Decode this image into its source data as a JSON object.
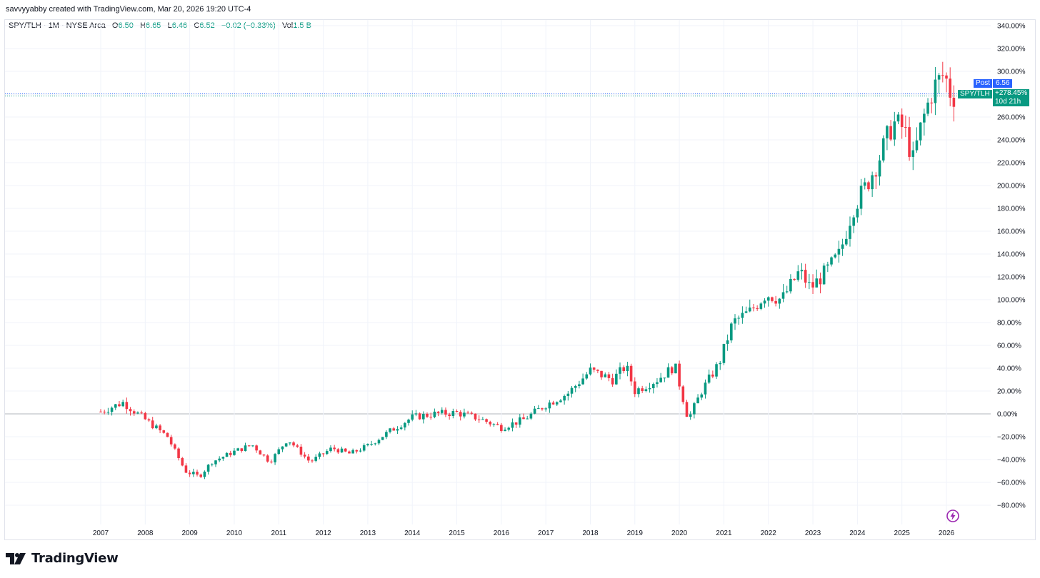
{
  "credit": "savvyyabby created with TradingView.com, Mar 20, 2026 19:20 UTC-4",
  "legend": {
    "symbol": "SPY/TLH · 1M · NYSE Arca",
    "o_label": "O",
    "o_value": "6.50",
    "h_label": "H",
    "h_value": "6.65",
    "l_label": "L",
    "l_value": "6.46",
    "c_label": "C",
    "c_value": "6.52",
    "change": "−0.02 (−0.33%)",
    "vol_label": "Vol",
    "vol_value": "1.5 B"
  },
  "price_tags": {
    "post_label": "Post",
    "post_value": "6.56",
    "symbol_label": "SPY/TLH",
    "pct_value": "+278.45%",
    "countdown": "10d 21h"
  },
  "brand": "TradingView",
  "colors": {
    "up": "#089981",
    "down": "#f23645",
    "post": "#2962ff",
    "grid": "#f0f3fa",
    "zero": "#b2b5be"
  },
  "icons": {
    "brand_logo": "tradingview-logo-icon",
    "lightning": "lightning-icon"
  },
  "chart_data": {
    "type": "candlestick",
    "interval": "1M",
    "y_unit": "percent change",
    "y_ticks": [
      "340.00%",
      "320.00%",
      "300.00%",
      "280.00%",
      "260.00%",
      "240.00%",
      "220.00%",
      "200.00%",
      "180.00%",
      "160.00%",
      "140.00%",
      "120.00%",
      "100.00%",
      "80.00%",
      "60.00%",
      "40.00%",
      "20.00%",
      "0.00%",
      "−20.00%",
      "−40.00%",
      "−60.00%",
      "−80.00%"
    ],
    "y_tick_values": [
      340,
      320,
      300,
      280,
      260,
      240,
      220,
      200,
      180,
      160,
      140,
      120,
      100,
      80,
      60,
      40,
      20,
      0,
      -20,
      -40,
      -60,
      -80
    ],
    "ylim": [
      -90,
      350
    ],
    "x_ticks": [
      "2007",
      "2008",
      "2009",
      "2010",
      "2011",
      "2012",
      "2013",
      "2014",
      "2015",
      "2016",
      "2017",
      "2018",
      "2019",
      "2020",
      "2021",
      "2022",
      "2023",
      "2024",
      "2025",
      "2026"
    ],
    "x_tick_years": [
      2007,
      2008,
      2009,
      2010,
      2011,
      2012,
      2013,
      2014,
      2015,
      2016,
      2017,
      2018,
      2019,
      2020,
      2021,
      2022,
      2023,
      2024,
      2025,
      2026
    ],
    "current_pct": 278.45,
    "series_close_by_year": [
      {
        "year": 2007.0,
        "close": 2
      },
      {
        "year": 2007.5,
        "close": 10
      },
      {
        "year": 2008.0,
        "close": -5
      },
      {
        "year": 2008.5,
        "close": -20
      },
      {
        "year": 2008.9,
        "close": -50
      },
      {
        "year": 2009.2,
        "close": -55
      },
      {
        "year": 2009.5,
        "close": -42
      },
      {
        "year": 2010.0,
        "close": -33
      },
      {
        "year": 2010.4,
        "close": -27
      },
      {
        "year": 2010.8,
        "close": -42
      },
      {
        "year": 2011.2,
        "close": -22
      },
      {
        "year": 2011.7,
        "close": -42
      },
      {
        "year": 2012.2,
        "close": -30
      },
      {
        "year": 2012.6,
        "close": -35
      },
      {
        "year": 2013.0,
        "close": -28
      },
      {
        "year": 2013.5,
        "close": -15
      },
      {
        "year": 2014.0,
        "close": -3
      },
      {
        "year": 2014.5,
        "close": 0
      },
      {
        "year": 2015.0,
        "close": 1
      },
      {
        "year": 2015.5,
        "close": -4
      },
      {
        "year": 2016.0,
        "close": -12
      },
      {
        "year": 2016.5,
        "close": -5
      },
      {
        "year": 2017.0,
        "close": 8
      },
      {
        "year": 2017.5,
        "close": 18
      },
      {
        "year": 2018.0,
        "close": 38
      },
      {
        "year": 2018.5,
        "close": 30
      },
      {
        "year": 2018.8,
        "close": 42
      },
      {
        "year": 2019.0,
        "close": 20
      },
      {
        "year": 2019.5,
        "close": 30
      },
      {
        "year": 2019.9,
        "close": 42
      },
      {
        "year": 2020.2,
        "close": -5
      },
      {
        "year": 2020.5,
        "close": 20
      },
      {
        "year": 2020.9,
        "close": 45
      },
      {
        "year": 2021.2,
        "close": 80
      },
      {
        "year": 2021.6,
        "close": 90
      },
      {
        "year": 2021.95,
        "close": 105
      },
      {
        "year": 2022.3,
        "close": 100
      },
      {
        "year": 2022.7,
        "close": 125
      },
      {
        "year": 2022.95,
        "close": 110
      },
      {
        "year": 2023.3,
        "close": 125
      },
      {
        "year": 2023.6,
        "close": 140
      },
      {
        "year": 2023.9,
        "close": 180
      },
      {
        "year": 2024.2,
        "close": 200
      },
      {
        "year": 2024.5,
        "close": 225
      },
      {
        "year": 2024.8,
        "close": 255
      },
      {
        "year": 2025.05,
        "close": 250
      },
      {
        "year": 2025.25,
        "close": 222
      },
      {
        "year": 2025.45,
        "close": 255
      },
      {
        "year": 2025.7,
        "close": 285
      },
      {
        "year": 2025.95,
        "close": 298
      },
      {
        "year": 2026.1,
        "close": 280
      },
      {
        "year": 2026.2,
        "close": 278
      }
    ]
  }
}
